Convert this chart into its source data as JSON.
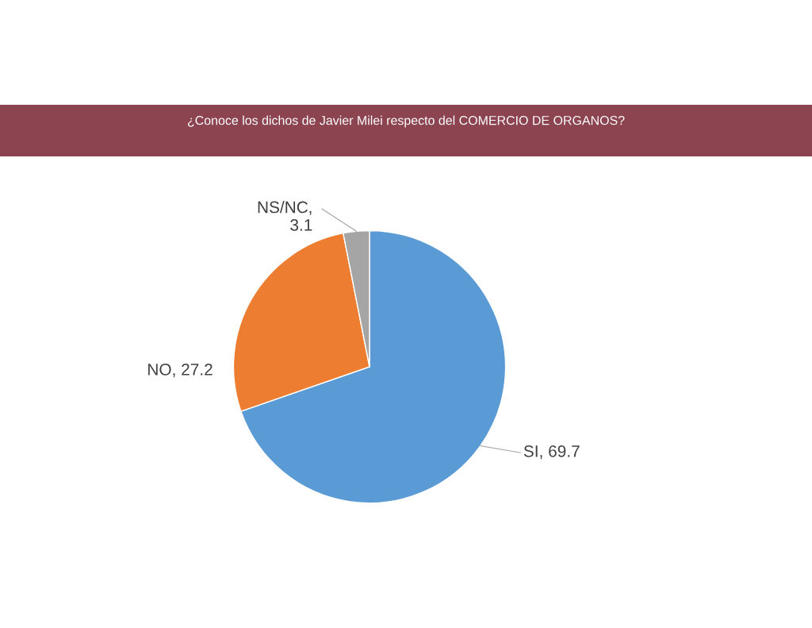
{
  "chart_data": {
    "type": "pie",
    "title": "¿Conoce los dichos de Javier Milei respecto del COMERCIO DE ORGANOS?",
    "categories": [
      "SI",
      "NO",
      "NS/NC"
    ],
    "values": [
      69.7,
      27.2,
      3.1
    ],
    "colors": [
      "#5b9bd5",
      "#ed7d31",
      "#a5a5a5"
    ],
    "value_labels": [
      ", 69.7",
      ", 27.2",
      ", 3.1"
    ]
  }
}
